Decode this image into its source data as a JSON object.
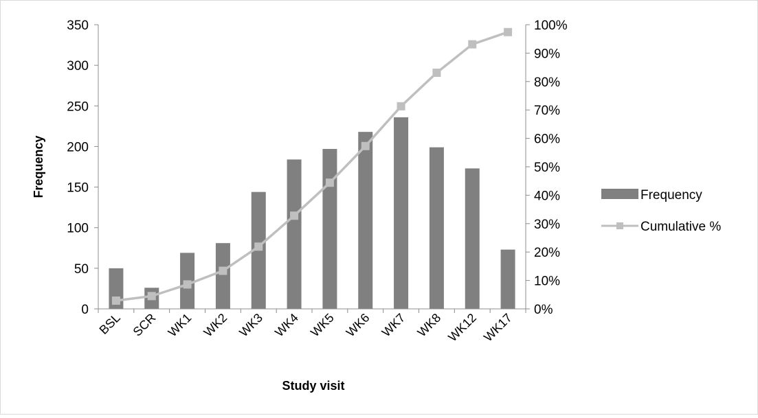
{
  "chart_data": {
    "type": "bar",
    "title": "",
    "categories": [
      "BSL",
      "SCR",
      "WK1",
      "WK2",
      "WK3",
      "WK4",
      "WK5",
      "WK6",
      "WK7",
      "WK8",
      "WK12",
      "WK17"
    ],
    "series": [
      {
        "name": "Frequency",
        "type": "bar",
        "axis": "left",
        "color": "#808080",
        "values": [
          50,
          26,
          69,
          81,
          144,
          184,
          197,
          218,
          236,
          199,
          173,
          73
        ]
      },
      {
        "name": "Cumulative %",
        "type": "line",
        "axis": "right",
        "color": "#bfbfbf",
        "marker": "square",
        "values": [
          2.9,
          4.5,
          8.6,
          13.4,
          21.9,
          32.8,
          44.4,
          57.3,
          71.3,
          83.1,
          93.1,
          97.4
        ]
      }
    ],
    "xlabel": "Study visit",
    "ylabel": "Frequency",
    "ylim": [
      0,
      350
    ],
    "y_ticks": [
      0,
      50,
      100,
      150,
      200,
      250,
      300,
      350
    ],
    "y2lim": [
      0,
      100
    ],
    "y2_ticks": [
      "0%",
      "10%",
      "20%",
      "30%",
      "40%",
      "50%",
      "60%",
      "70%",
      "80%",
      "90%",
      "100%"
    ],
    "grid": false,
    "legend_position": "right"
  }
}
